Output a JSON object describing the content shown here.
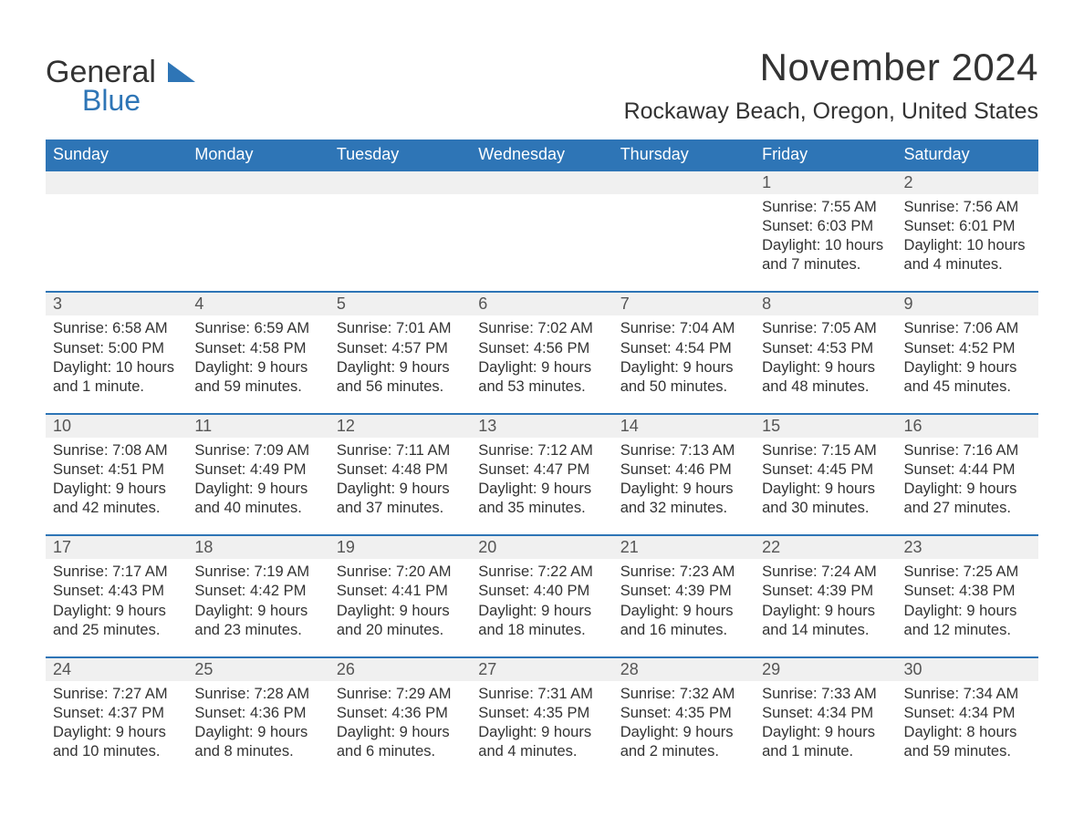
{
  "brand": {
    "part1": "General",
    "part2": "Blue"
  },
  "colors": {
    "accent": "#2e75b6",
    "header_bg": "#2e75b6",
    "header_text": "#ffffff",
    "daynum_bg": "#f0f0f0",
    "text": "#333333",
    "page_bg": "#ffffff"
  },
  "title": "November 2024",
  "location": "Rockaway Beach, Oregon, United States",
  "weekdays": [
    "Sunday",
    "Monday",
    "Tuesday",
    "Wednesday",
    "Thursday",
    "Friday",
    "Saturday"
  ],
  "labels": {
    "sunrise": "Sunrise:",
    "sunset": "Sunset:",
    "daylight": "Daylight:"
  },
  "weeks": [
    [
      null,
      null,
      null,
      null,
      null,
      {
        "n": "1",
        "sunrise": "7:55 AM",
        "sunset": "6:03 PM",
        "daylight_l1": "10 hours",
        "daylight_l2": "and 7 minutes."
      },
      {
        "n": "2",
        "sunrise": "7:56 AM",
        "sunset": "6:01 PM",
        "daylight_l1": "10 hours",
        "daylight_l2": "and 4 minutes."
      }
    ],
    [
      {
        "n": "3",
        "sunrise": "6:58 AM",
        "sunset": "5:00 PM",
        "daylight_l1": "10 hours",
        "daylight_l2": "and 1 minute."
      },
      {
        "n": "4",
        "sunrise": "6:59 AM",
        "sunset": "4:58 PM",
        "daylight_l1": "9 hours",
        "daylight_l2": "and 59 minutes."
      },
      {
        "n": "5",
        "sunrise": "7:01 AM",
        "sunset": "4:57 PM",
        "daylight_l1": "9 hours",
        "daylight_l2": "and 56 minutes."
      },
      {
        "n": "6",
        "sunrise": "7:02 AM",
        "sunset": "4:56 PM",
        "daylight_l1": "9 hours",
        "daylight_l2": "and 53 minutes."
      },
      {
        "n": "7",
        "sunrise": "7:04 AM",
        "sunset": "4:54 PM",
        "daylight_l1": "9 hours",
        "daylight_l2": "and 50 minutes."
      },
      {
        "n": "8",
        "sunrise": "7:05 AM",
        "sunset": "4:53 PM",
        "daylight_l1": "9 hours",
        "daylight_l2": "and 48 minutes."
      },
      {
        "n": "9",
        "sunrise": "7:06 AM",
        "sunset": "4:52 PM",
        "daylight_l1": "9 hours",
        "daylight_l2": "and 45 minutes."
      }
    ],
    [
      {
        "n": "10",
        "sunrise": "7:08 AM",
        "sunset": "4:51 PM",
        "daylight_l1": "9 hours",
        "daylight_l2": "and 42 minutes."
      },
      {
        "n": "11",
        "sunrise": "7:09 AM",
        "sunset": "4:49 PM",
        "daylight_l1": "9 hours",
        "daylight_l2": "and 40 minutes."
      },
      {
        "n": "12",
        "sunrise": "7:11 AM",
        "sunset": "4:48 PM",
        "daylight_l1": "9 hours",
        "daylight_l2": "and 37 minutes."
      },
      {
        "n": "13",
        "sunrise": "7:12 AM",
        "sunset": "4:47 PM",
        "daylight_l1": "9 hours",
        "daylight_l2": "and 35 minutes."
      },
      {
        "n": "14",
        "sunrise": "7:13 AM",
        "sunset": "4:46 PM",
        "daylight_l1": "9 hours",
        "daylight_l2": "and 32 minutes."
      },
      {
        "n": "15",
        "sunrise": "7:15 AM",
        "sunset": "4:45 PM",
        "daylight_l1": "9 hours",
        "daylight_l2": "and 30 minutes."
      },
      {
        "n": "16",
        "sunrise": "7:16 AM",
        "sunset": "4:44 PM",
        "daylight_l1": "9 hours",
        "daylight_l2": "and 27 minutes."
      }
    ],
    [
      {
        "n": "17",
        "sunrise": "7:17 AM",
        "sunset": "4:43 PM",
        "daylight_l1": "9 hours",
        "daylight_l2": "and 25 minutes."
      },
      {
        "n": "18",
        "sunrise": "7:19 AM",
        "sunset": "4:42 PM",
        "daylight_l1": "9 hours",
        "daylight_l2": "and 23 minutes."
      },
      {
        "n": "19",
        "sunrise": "7:20 AM",
        "sunset": "4:41 PM",
        "daylight_l1": "9 hours",
        "daylight_l2": "and 20 minutes."
      },
      {
        "n": "20",
        "sunrise": "7:22 AM",
        "sunset": "4:40 PM",
        "daylight_l1": "9 hours",
        "daylight_l2": "and 18 minutes."
      },
      {
        "n": "21",
        "sunrise": "7:23 AM",
        "sunset": "4:39 PM",
        "daylight_l1": "9 hours",
        "daylight_l2": "and 16 minutes."
      },
      {
        "n": "22",
        "sunrise": "7:24 AM",
        "sunset": "4:39 PM",
        "daylight_l1": "9 hours",
        "daylight_l2": "and 14 minutes."
      },
      {
        "n": "23",
        "sunrise": "7:25 AM",
        "sunset": "4:38 PM",
        "daylight_l1": "9 hours",
        "daylight_l2": "and 12 minutes."
      }
    ],
    [
      {
        "n": "24",
        "sunrise": "7:27 AM",
        "sunset": "4:37 PM",
        "daylight_l1": "9 hours",
        "daylight_l2": "and 10 minutes."
      },
      {
        "n": "25",
        "sunrise": "7:28 AM",
        "sunset": "4:36 PM",
        "daylight_l1": "9 hours",
        "daylight_l2": "and 8 minutes."
      },
      {
        "n": "26",
        "sunrise": "7:29 AM",
        "sunset": "4:36 PM",
        "daylight_l1": "9 hours",
        "daylight_l2": "and 6 minutes."
      },
      {
        "n": "27",
        "sunrise": "7:31 AM",
        "sunset": "4:35 PM",
        "daylight_l1": "9 hours",
        "daylight_l2": "and 4 minutes."
      },
      {
        "n": "28",
        "sunrise": "7:32 AM",
        "sunset": "4:35 PM",
        "daylight_l1": "9 hours",
        "daylight_l2": "and 2 minutes."
      },
      {
        "n": "29",
        "sunrise": "7:33 AM",
        "sunset": "4:34 PM",
        "daylight_l1": "9 hours",
        "daylight_l2": "and 1 minute."
      },
      {
        "n": "30",
        "sunrise": "7:34 AM",
        "sunset": "4:34 PM",
        "daylight_l1": "8 hours",
        "daylight_l2": "and 59 minutes."
      }
    ]
  ]
}
